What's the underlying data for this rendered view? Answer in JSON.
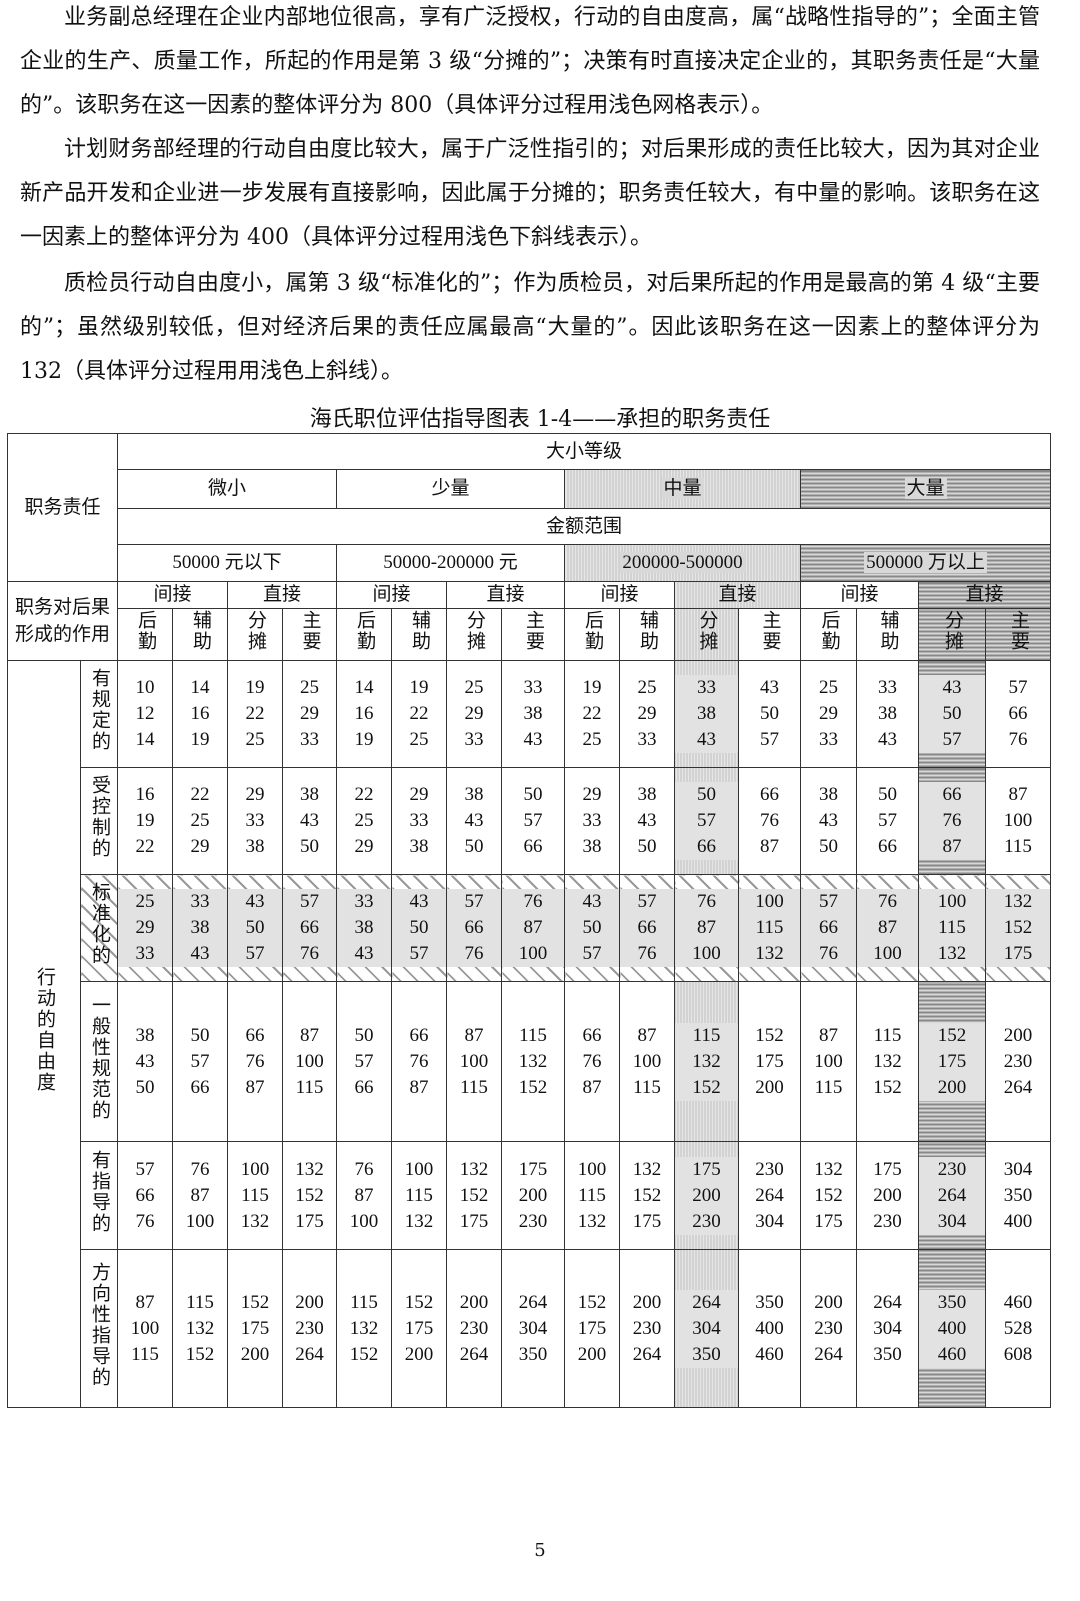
{
  "paragraphs": [
    "业务副总经理在企业内部地位很高，享有广泛授权，行动的自由度高，属“战略性指导的”；全面主管企业的生产、质量工作，所起的作用是第 3 级“分摊的”；决策有时直接决定企业的，其职务责任是“大量的”。该职务在这一因素的整体评分为 800（具体评分过程用浅色网格表示）。",
    "计划财务部经理的行动自由度比较大，属于广泛性指引的；对后果形成的责任比较大，因为其对企业新产品开发和企业进一步发展有直接影响，因此属于分摊的；职务责任较大，有中量的影响。该职务在这一因素上的整体评分为 400（具体评分过程用浅色下斜线表示）。",
    "质检员行动自由度小，属第 3 级“标准化的”；作为质检员，对后果所起的作用是最高的第 4 级“主要的”；虽然级别较低，但对经济后果的责任应属最高“大量的”。因此该职务在这一因素上的整体评分为 132（具体评分过程用用浅色上斜线）。"
  ],
  "table": {
    "title": "海氏职位评估指导图表 1-4——承担的职务责任",
    "corner_label": "职务责任",
    "size_label": "大小等级",
    "sizes": [
      "微小",
      "少量",
      "中量",
      "大量"
    ],
    "amount_label": "金额范围",
    "amounts": [
      "50000 元以下",
      "50000-200000 元",
      "200000-500000",
      "500000 万以上"
    ],
    "role_label": "职务对后果形成的作用",
    "role_groups": [
      "间接",
      "直接"
    ],
    "roles": [
      "后勤",
      "辅助",
      "分摊",
      "主要"
    ],
    "freedom_label": "行动的自由度",
    "rows": [
      {
        "label": "有规定的",
        "values": [
          [
            10,
            14,
            19,
            25,
            14,
            19,
            25,
            33,
            19,
            25,
            33,
            43,
            25,
            33,
            43,
            57
          ],
          [
            12,
            16,
            22,
            29,
            16,
            22,
            29,
            38,
            22,
            29,
            38,
            50,
            29,
            38,
            50,
            66
          ],
          [
            14,
            19,
            25,
            33,
            19,
            25,
            33,
            43,
            25,
            33,
            43,
            57,
            33,
            43,
            57,
            76
          ]
        ]
      },
      {
        "label": "受控制的",
        "values": [
          [
            16,
            22,
            29,
            38,
            22,
            29,
            38,
            50,
            29,
            38,
            50,
            66,
            38,
            50,
            66,
            87
          ],
          [
            19,
            25,
            33,
            43,
            25,
            33,
            43,
            57,
            33,
            43,
            57,
            76,
            43,
            57,
            76,
            100
          ],
          [
            22,
            29,
            38,
            50,
            29,
            38,
            50,
            66,
            38,
            50,
            66,
            87,
            50,
            66,
            87,
            115
          ]
        ]
      },
      {
        "label": "标准化的",
        "values": [
          [
            25,
            33,
            43,
            57,
            33,
            43,
            57,
            76,
            43,
            57,
            76,
            100,
            57,
            76,
            100,
            132
          ],
          [
            29,
            38,
            50,
            66,
            38,
            50,
            66,
            87,
            50,
            66,
            87,
            115,
            66,
            87,
            115,
            152
          ],
          [
            33,
            43,
            57,
            76,
            43,
            57,
            76,
            100,
            57,
            76,
            100,
            132,
            76,
            100,
            132,
            175
          ]
        ]
      },
      {
        "label": "一般性规范的",
        "values": [
          [
            38,
            50,
            66,
            87,
            50,
            66,
            87,
            115,
            66,
            87,
            115,
            152,
            87,
            115,
            152,
            200
          ],
          [
            43,
            57,
            76,
            100,
            57,
            76,
            100,
            132,
            76,
            100,
            132,
            175,
            100,
            132,
            175,
            230
          ],
          [
            50,
            66,
            87,
            115,
            66,
            87,
            115,
            152,
            87,
            115,
            152,
            200,
            115,
            152,
            200,
            264
          ]
        ]
      },
      {
        "label": "有指导的",
        "values": [
          [
            57,
            76,
            100,
            132,
            76,
            100,
            132,
            175,
            100,
            132,
            175,
            230,
            132,
            175,
            230,
            304
          ],
          [
            66,
            87,
            115,
            152,
            87,
            115,
            152,
            200,
            115,
            152,
            200,
            264,
            152,
            200,
            264,
            350
          ],
          [
            76,
            100,
            132,
            175,
            100,
            132,
            175,
            230,
            132,
            175,
            230,
            304,
            175,
            230,
            304,
            400
          ]
        ]
      },
      {
        "label": "方向性指导的",
        "values": [
          [
            87,
            115,
            152,
            200,
            115,
            152,
            200,
            264,
            152,
            200,
            264,
            350,
            200,
            264,
            350,
            460
          ],
          [
            100,
            132,
            175,
            230,
            132,
            175,
            230,
            304,
            175,
            230,
            304,
            400,
            230,
            304,
            400,
            528
          ],
          [
            115,
            152,
            200,
            264,
            152,
            200,
            264,
            350,
            200,
            264,
            350,
            460,
            264,
            350,
            460,
            608
          ]
        ]
      }
    ]
  },
  "page_number": "5"
}
